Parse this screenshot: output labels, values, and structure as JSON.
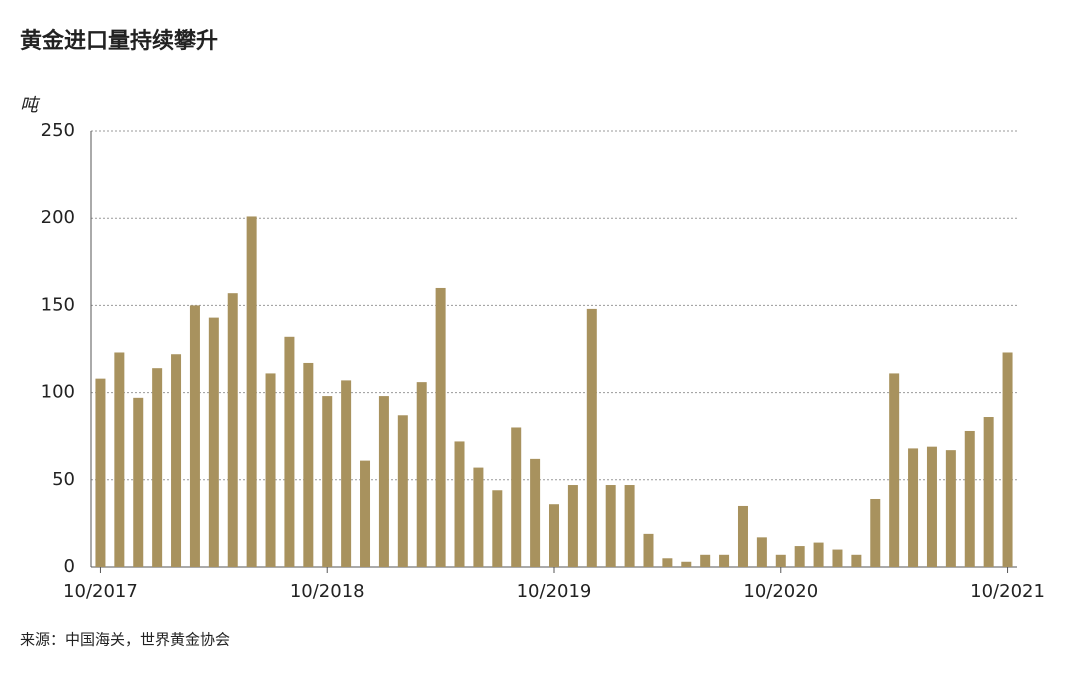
{
  "chart_data": {
    "type": "bar",
    "title": "黄金进口量持续攀升",
    "y_unit": "吨",
    "source": "来源：中国海关，世界黄金协会",
    "categories": [
      "10/2017",
      null,
      null,
      null,
      null,
      null,
      null,
      null,
      null,
      null,
      null,
      null,
      "10/2018",
      null,
      null,
      null,
      null,
      null,
      null,
      null,
      null,
      null,
      null,
      null,
      "10/2019",
      null,
      null,
      null,
      null,
      null,
      null,
      null,
      null,
      null,
      null,
      null,
      "10/2020",
      null,
      null,
      null,
      null,
      null,
      null,
      null,
      null,
      null,
      null,
      null,
      "10/2021"
    ],
    "values": [
      108,
      123,
      97,
      114,
      122,
      150,
      143,
      157,
      201,
      111,
      132,
      117,
      98,
      107,
      61,
      98,
      87,
      106,
      160,
      72,
      57,
      44,
      80,
      62,
      36,
      47,
      148,
      47,
      47,
      19,
      5,
      3,
      7,
      7,
      35,
      17,
      7,
      12,
      14,
      10,
      7,
      39,
      111,
      68,
      69,
      67,
      78,
      86,
      123
    ],
    "color": "#a8925e",
    "ylim": [
      0,
      250
    ],
    "yticks": [
      0,
      50,
      100,
      150,
      200,
      250
    ],
    "grid": true
  }
}
